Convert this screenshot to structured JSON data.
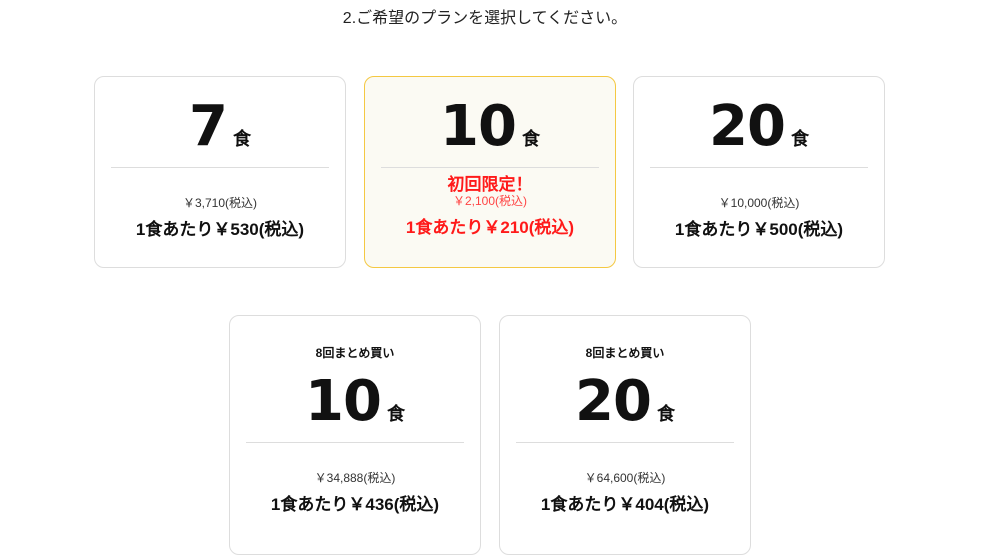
{
  "title": "2.ご希望のプランを選択してください。",
  "plans": [
    {
      "count": "7",
      "unit": "食",
      "price": "￥3,710(税込)",
      "per": "1食あたり￥530(税込)"
    },
    {
      "count": "10",
      "unit": "食",
      "badge": "初回限定！",
      "price": "￥2,100(税込)",
      "per": "1食あたり￥210(税込)",
      "selected": true
    },
    {
      "count": "20",
      "unit": "食",
      "price": "￥10,000(税込)",
      "per": "1食あたり￥500(税込)"
    },
    {
      "label": "8回まとめ買い",
      "count": "10",
      "unit": "食",
      "price": "￥34,888(税込)",
      "per": "1食あたり￥436(税込)"
    },
    {
      "label": "8回まとめ買い",
      "count": "20",
      "unit": "食",
      "price": "￥64,600(税込)",
      "per": "1食あたり￥404(税込)"
    }
  ],
  "colors": {
    "accent": "#ff1a1a",
    "selected_border": "#f4c842",
    "selected_bg": "#fbfaf3"
  }
}
